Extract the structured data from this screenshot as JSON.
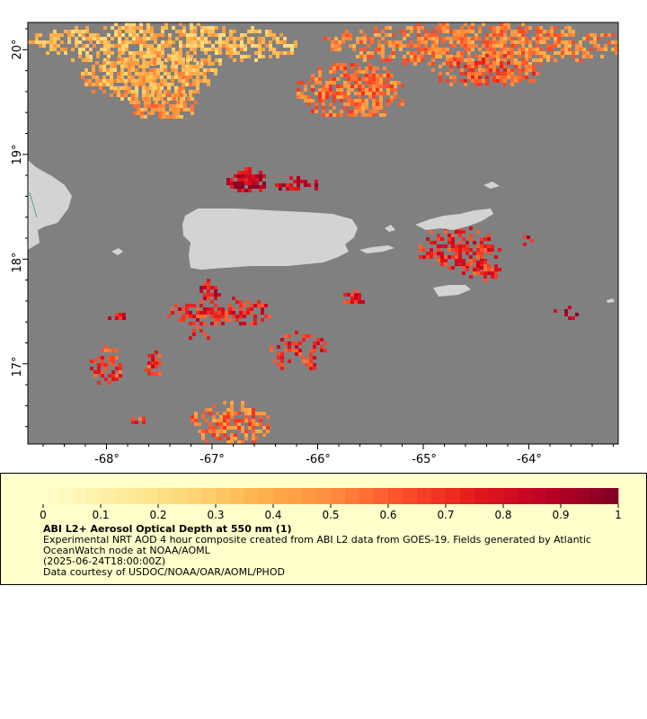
{
  "map": {
    "lon_labels": [
      "-68°",
      "-67°",
      "-66°",
      "-65°",
      "-64°"
    ],
    "lat_labels": [
      "20°",
      "19°",
      "18°",
      "17°"
    ],
    "colors": {
      "ocean": "#808080",
      "land": "#d3d3d3",
      "frame": "#000000"
    },
    "places": [
      "Hispaniola (east tip)",
      "Puerto Rico",
      "Vieques",
      "Culebra",
      "St. Thomas",
      "St. John",
      "Tortola",
      "St. Croix",
      "Mona Island"
    ]
  },
  "colorbar": {
    "tick_labels": [
      "0",
      "0.1",
      "0.2",
      "0.3",
      "0.4",
      "0.5",
      "0.6",
      "0.7",
      "0.8",
      "0.9",
      "1"
    ],
    "min": 0,
    "max": 1,
    "steps": 40,
    "colormap": "YlOrRd"
  },
  "legend": {
    "title": "ABI L2+ Aerosol Optical Depth at 550 nm (1)",
    "description": "Experimental NRT AOD 4 hour composite created from ABI L2 data from GOES-19. Fields generated by Atlantic OceanWatch node at NOAA/AOML",
    "timestamp": "(2025-06-24T18:00:00Z)",
    "credit": "Data courtesy of USDOC/NOAA/OAR/AOML/PHOD"
  }
}
